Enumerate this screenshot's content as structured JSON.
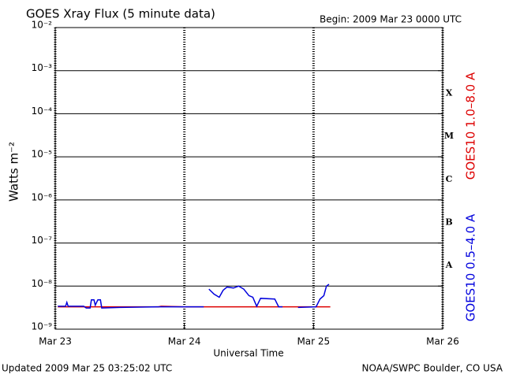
{
  "chart_data": {
    "type": "line",
    "title": "GOES Xray Flux (5 minute data)",
    "subtitle": "Begin:  2009 Mar 23 0000 UTC",
    "x_label": "Universal Time",
    "y_label": "Watts m⁻²",
    "footer_left": "Updated 2009 Mar 25 03:25:02 UTC",
    "footer_right": "NOAA/SWPC Boulder, CO USA",
    "log_scale": true,
    "grid": true,
    "xlim": [
      0,
      3
    ],
    "xticks": [
      {
        "value": 0,
        "label": "Mar 23"
      },
      {
        "value": 1,
        "label": "Mar 24"
      },
      {
        "value": 2,
        "label": "Mar 25"
      },
      {
        "value": 3,
        "label": "Mar 26"
      }
    ],
    "ylim": [
      1e-09,
      0.01
    ],
    "yticks": [
      {
        "value": 1e-09,
        "label": "10⁻⁹"
      },
      {
        "value": 1e-08,
        "label": "10⁻⁸"
      },
      {
        "value": 1e-07,
        "label": "10⁻⁷"
      },
      {
        "value": 1e-06,
        "label": "10⁻⁶"
      },
      {
        "value": 1e-05,
        "label": "10⁻⁵"
      },
      {
        "value": 0.0001,
        "label": "10⁻⁴"
      },
      {
        "value": 0.001,
        "label": "10⁻³"
      },
      {
        "value": 0.01,
        "label": "10⁻²"
      }
    ],
    "class_labels": [
      {
        "text": "X",
        "y": 0.0003
      },
      {
        "text": "M",
        "y": 3e-05
      },
      {
        "text": "C",
        "y": 3e-06
      },
      {
        "text": "B",
        "y": 3e-07
      },
      {
        "text": "A",
        "y": 3e-08
      }
    ],
    "series": [
      {
        "name": "GOES10 1.0–8.0 A",
        "color": "#dd0000",
        "x": [
          0.02,
          0.3,
          0.6,
          0.8,
          0.82,
          1.0,
          1.15,
          1.4,
          1.7,
          1.9,
          2.13
        ],
        "values": [
          3.3e-09,
          3.3e-09,
          3.3e-09,
          3.3e-09,
          3.4e-09,
          3.3e-09,
          3.3e-09,
          3.3e-09,
          3.3e-09,
          3.3e-09,
          3.3e-09
        ]
      },
      {
        "name": "GOES10 0.5–4.0 A",
        "color": "#0000dd",
        "x": [
          0.02,
          0.08,
          0.09,
          0.1,
          0.22,
          0.24,
          0.27,
          0.28,
          0.3,
          0.31,
          0.33,
          0.35,
          0.36,
          0.5,
          0.8,
          1.15,
          1.17,
          1.19,
          1.23,
          1.27,
          1.3,
          1.33,
          1.38,
          1.42,
          1.46,
          1.5,
          1.53,
          1.56,
          1.59,
          1.7,
          1.73,
          1.76,
          1.8,
          1.88,
          2.02,
          2.05,
          2.08,
          2.1,
          2.12
        ],
        "values": [
          3.4e-09,
          3.4e-09,
          4.2e-09,
          3.4e-09,
          3.4e-09,
          3.1e-09,
          3.1e-09,
          4.8e-09,
          4.8e-09,
          3.6e-09,
          4.8e-09,
          4.8e-09,
          3.1e-09,
          3.2e-09,
          3.3e-09,
          3.3e-09,
          null,
          8.5e-09,
          6.5e-09,
          5.5e-09,
          8e-09,
          9.5e-09,
          9e-09,
          1e-08,
          8.5e-09,
          6e-09,
          5.5e-09,
          3.4e-09,
          5.2e-09,
          5e-09,
          3.3e-09,
          3.3e-09,
          null,
          3.2e-09,
          3.3e-09,
          5e-09,
          6e-09,
          1e-08,
          1.1e-08
        ]
      }
    ]
  }
}
